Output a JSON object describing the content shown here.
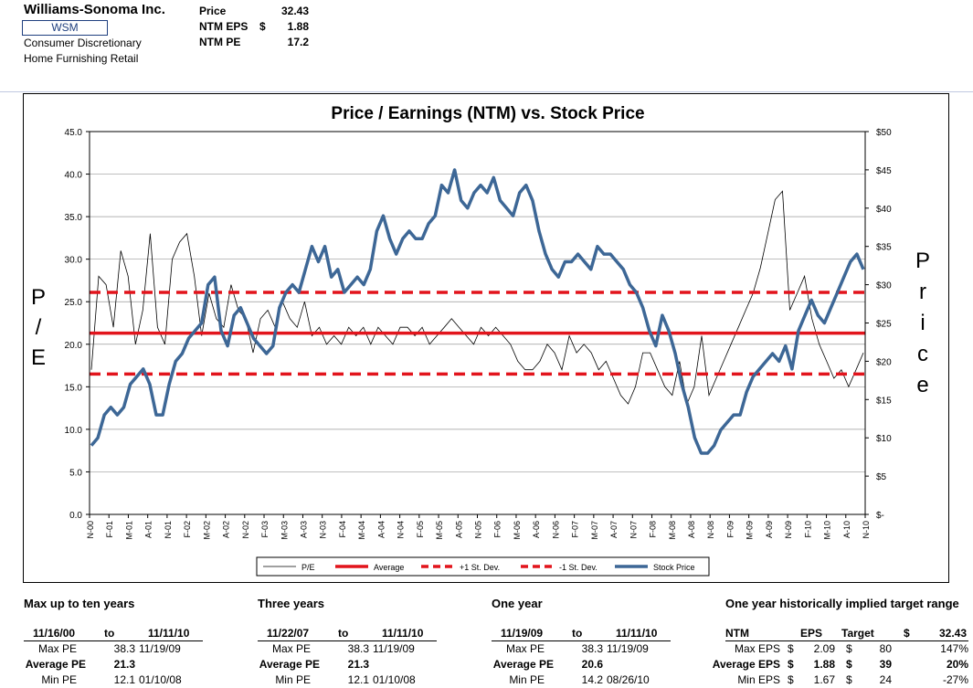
{
  "header": {
    "company": "Williams-Sonoma Inc.",
    "ticker": "WSM",
    "sector": "Consumer Discretionary",
    "industry": "Home Furnishing Retail",
    "price_label": "Price",
    "price_value": "32.43",
    "eps_label": "NTM EPS",
    "eps_dollar": "$",
    "eps_value": "1.88",
    "pe_label": "NTM PE",
    "pe_value": "17.2"
  },
  "chart_data": {
    "type": "line",
    "title": "Price / Earnings (NTM) vs. Stock Price",
    "ylabel_left": "P / E",
    "ylabel_right": "Price",
    "left_ticks": [
      "45.0",
      "40.0",
      "35.0",
      "30.0",
      "25.0",
      "20.0",
      "15.0",
      "10.0",
      "5.0",
      "0.0"
    ],
    "right_ticks": [
      "$50",
      "$45",
      "$40",
      "$35",
      "$30",
      "$25",
      "$20",
      "$15",
      "$10",
      "$5",
      "$-"
    ],
    "ylim_left": [
      0,
      45
    ],
    "ylim_right": [
      0,
      50
    ],
    "x_ticks": [
      "N-00",
      "F-01",
      "M-01",
      "A-01",
      "N-01",
      "F-02",
      "M-02",
      "A-02",
      "N-02",
      "F-03",
      "M-03",
      "A-03",
      "N-03",
      "F-04",
      "M-04",
      "A-04",
      "N-04",
      "F-05",
      "M-05",
      "A-05",
      "N-05",
      "F-06",
      "M-06",
      "A-06",
      "N-06",
      "F-07",
      "M-07",
      "A-07",
      "N-07",
      "F-08",
      "M-08",
      "A-08",
      "N-08",
      "F-09",
      "M-09",
      "A-09",
      "N-09",
      "F-10",
      "M-10",
      "A-10",
      "N-10"
    ],
    "average_pe": 21.3,
    "plus_1sd": 26.1,
    "minus_1sd": 16.5,
    "legend": [
      "P/E",
      "Average",
      "+1 St. Dev.",
      "-1 St. Dev.",
      "Stock Price"
    ],
    "series": [
      {
        "name": "P/E",
        "values": [
          17,
          28,
          27,
          22,
          31,
          28,
          20,
          24,
          33,
          22,
          20,
          30,
          32,
          33,
          28,
          21,
          26,
          23,
          22,
          27,
          24,
          23,
          19,
          23,
          24,
          22,
          25,
          23,
          22,
          25,
          21,
          22,
          20,
          21,
          20,
          22,
          21,
          22,
          20,
          22,
          21,
          20,
          22,
          22,
          21,
          22,
          20,
          21,
          22,
          23,
          22,
          21,
          20,
          22,
          21,
          22,
          21,
          20,
          18,
          17,
          17,
          18,
          20,
          19,
          17,
          21,
          19,
          20,
          19,
          17,
          18,
          16,
          14,
          13,
          15,
          19,
          19,
          17,
          15,
          14,
          18,
          13,
          15,
          21,
          14,
          16,
          18,
          20,
          22,
          24,
          26,
          29,
          33,
          37,
          38,
          24,
          26,
          28,
          23,
          20,
          18,
          16,
          17,
          15,
          17,
          19
        ]
      },
      {
        "name": "Stock Price",
        "values": [
          9,
          10,
          13,
          14,
          13,
          14,
          17,
          18,
          19,
          17,
          13,
          13,
          17,
          20,
          21,
          23,
          24,
          25,
          30,
          31,
          24,
          22,
          26,
          27,
          25,
          23,
          22,
          21,
          22,
          27,
          29,
          30,
          29,
          32,
          35,
          33,
          35,
          31,
          32,
          29,
          30,
          31,
          30,
          32,
          37,
          39,
          36,
          34,
          36,
          37,
          36,
          36,
          38,
          39,
          43,
          42,
          45,
          41,
          40,
          42,
          43,
          42,
          44,
          41,
          40,
          39,
          42,
          43,
          41,
          37,
          34,
          32,
          31,
          33,
          33,
          34,
          33,
          32,
          35,
          34,
          34,
          33,
          32,
          30,
          29,
          27,
          24,
          22,
          26,
          24,
          21,
          17,
          14,
          10,
          8,
          8,
          9,
          11,
          12,
          13,
          13,
          16,
          18,
          19,
          20,
          21,
          20,
          22,
          19,
          24,
          26,
          28,
          26,
          25,
          27,
          29,
          31,
          33,
          34,
          32
        ]
      }
    ]
  },
  "tables": [
    {
      "title": "Max up to ten years",
      "start": "11/16/00",
      "to": "to",
      "end": "11/11/10",
      "max_label": "Max PE",
      "max_value": "38.3",
      "max_date": "11/19/09",
      "avg_label": "Average PE",
      "avg_value": "21.3",
      "min_label": "Min PE",
      "min_value": "12.1",
      "min_date": "01/10/08"
    },
    {
      "title": "Three years",
      "start": "11/22/07",
      "to": "to",
      "end": "11/11/10",
      "max_label": "Max PE",
      "max_value": "38.3",
      "max_date": "11/19/09",
      "avg_label": "Average PE",
      "avg_value": "21.3",
      "min_label": "Min PE",
      "min_value": "12.1",
      "min_date": "01/10/08"
    },
    {
      "title": "One year",
      "start": "11/19/09",
      "to": "to",
      "end": "11/11/10",
      "max_label": "Max PE",
      "max_value": "38.3",
      "max_date": "11/19/09",
      "avg_label": "Average PE",
      "avg_value": "20.6",
      "min_label": "Min PE",
      "min_value": "14.2",
      "min_date": "08/26/10"
    }
  ],
  "target": {
    "title": "One year historically implied target range",
    "col_ntm": "NTM",
    "col_eps": "EPS",
    "col_target": "Target",
    "col_dollar": "$",
    "col_price": "32.43",
    "rows": [
      {
        "label": "Max EPS",
        "cur1": "$",
        "eps": "2.09",
        "cur2": "$",
        "target": "80",
        "pct": "147%"
      },
      {
        "label": "Average EPS",
        "cur1": "$",
        "eps": "1.88",
        "cur2": "$",
        "target": "39",
        "pct": "20%"
      },
      {
        "label": "Min EPS",
        "cur1": "$",
        "eps": "1.67",
        "cur2": "$",
        "target": "24",
        "pct": "-27%"
      }
    ]
  }
}
